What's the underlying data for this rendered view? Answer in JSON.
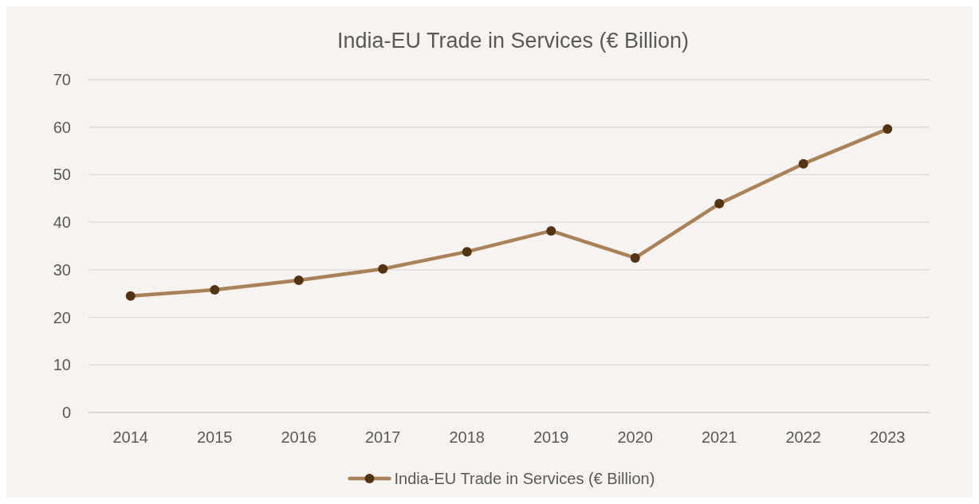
{
  "chart_data": {
    "type": "line",
    "title": "India-EU Trade in Services (€ Billion)",
    "categories": [
      "2014",
      "2015",
      "2016",
      "2017",
      "2018",
      "2019",
      "2020",
      "2021",
      "2022",
      "2023"
    ],
    "series": [
      {
        "name": "India-EU Trade in Services (€ Billion)",
        "color": "#a98259",
        "values": [
          24.5,
          25.8,
          27.8,
          30.2,
          33.8,
          38.2,
          32.5,
          43.9,
          52.3,
          59.6
        ]
      }
    ],
    "ylim": [
      0,
      70
    ],
    "yticks": [
      0,
      10,
      20,
      30,
      40,
      50,
      60,
      70
    ],
    "grid": "y",
    "legend": "bottom",
    "marker": "circle",
    "line_style": "solid"
  }
}
